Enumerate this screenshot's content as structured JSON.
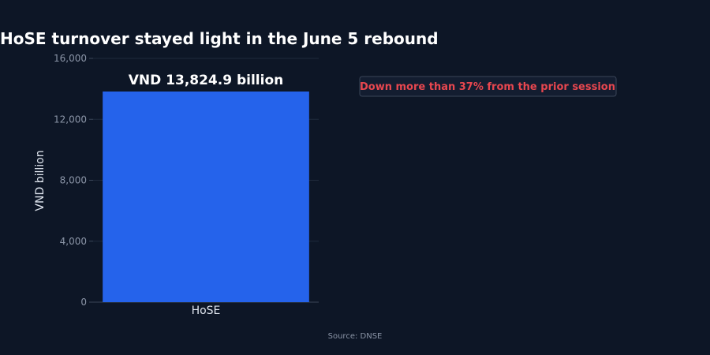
{
  "chart_data": {
    "type": "bar",
    "title": "HoSE turnover stayed light in the June 5 rebound",
    "categories": [
      "HoSE"
    ],
    "values": [
      13824.9
    ],
    "data_labels": [
      "VND 13,824.9 billion"
    ],
    "xlabel": "",
    "ylabel": "VND billion",
    "ylim": [
      0,
      16000
    ],
    "yticks": [
      0,
      4000,
      8000,
      12000,
      16000
    ],
    "ytick_labels": [
      "0",
      "4,000",
      "8,000",
      "12,000",
      "16,000"
    ],
    "grid": true,
    "legend": "none",
    "annotation": "Down more than 37% from the prior session",
    "source": "Source: DNSE"
  },
  "colors": {
    "background": "#0d1626",
    "bar": "#2563eb",
    "annotation_text": "#e8474f",
    "annotation_border": "#3a4558",
    "grid": "#1f2a3c"
  }
}
